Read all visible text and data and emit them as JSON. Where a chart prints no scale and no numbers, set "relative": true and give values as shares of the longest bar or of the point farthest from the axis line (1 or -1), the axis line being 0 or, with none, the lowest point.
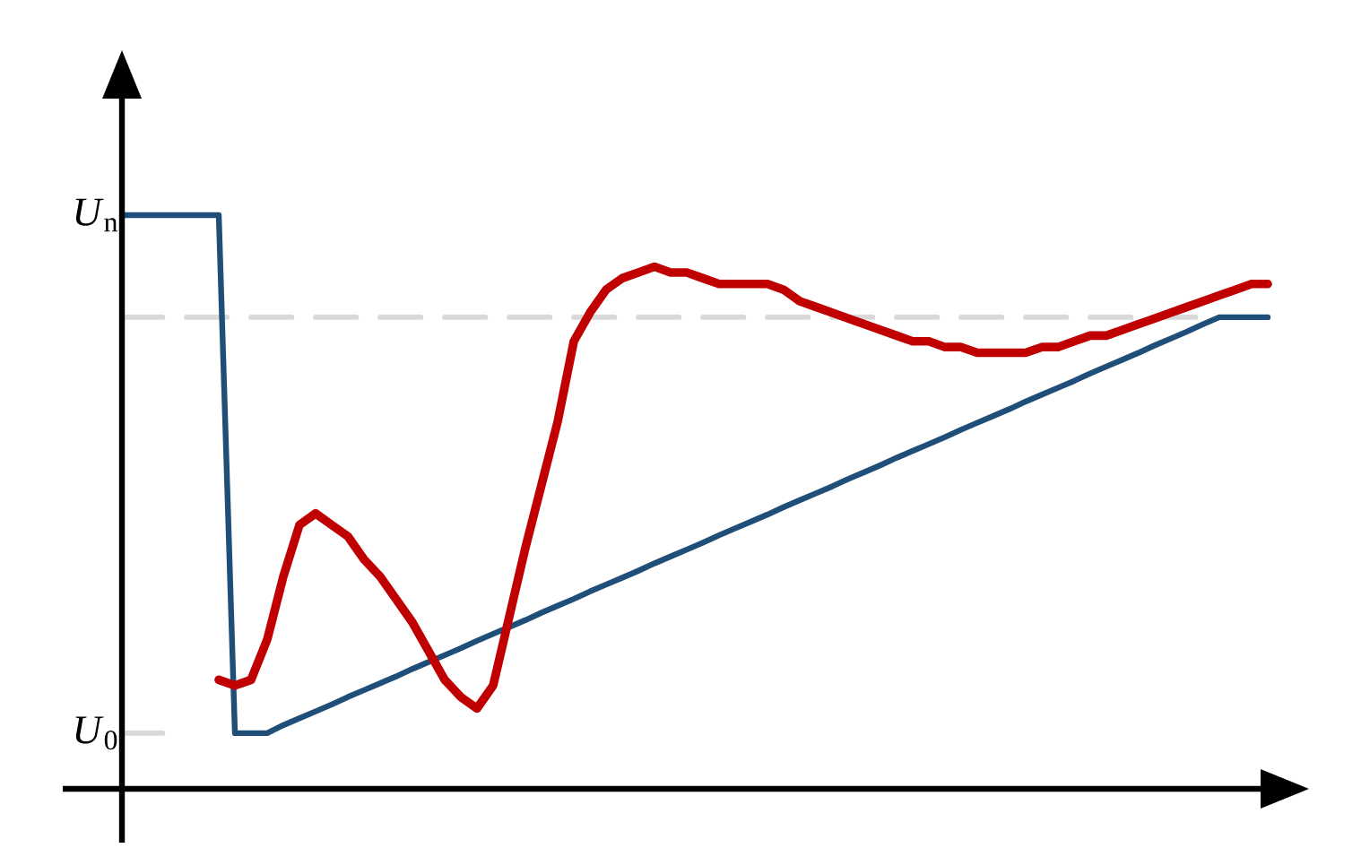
{
  "chart_data": {
    "type": "line",
    "relative": true,
    "marker": "none",
    "categories": [
      null,
      null,
      null,
      null,
      null,
      null,
      null,
      null,
      null,
      null,
      null,
      null,
      null,
      null,
      null,
      null,
      null,
      null,
      null,
      null,
      null,
      null,
      null,
      null,
      null,
      null,
      null,
      null,
      null,
      null,
      null,
      null,
      null,
      null,
      null,
      null,
      null,
      null,
      null,
      null,
      null,
      null,
      null,
      null,
      null,
      null,
      null,
      null,
      null,
      null,
      null,
      null,
      null,
      null,
      null,
      null,
      null,
      null,
      null,
      null,
      null,
      null,
      null,
      null,
      null,
      null,
      null,
      null,
      null,
      null,
      null,
      null
    ],
    "series": [
      {
        "color": "#1f4e79",
        "values": [
          1.0,
          1.0,
          1.0,
          1.0,
          1.0,
          1.0,
          1.0,
          0.097,
          0.097,
          0.097,
          0.111,
          0.123,
          0.135,
          0.147,
          0.16,
          0.172,
          0.184,
          0.196,
          0.209,
          0.221,
          0.233,
          0.245,
          0.258,
          0.27,
          0.282,
          0.294,
          0.307,
          0.319,
          0.331,
          0.344,
          0.356,
          0.368,
          0.38,
          0.393,
          0.405,
          0.417,
          0.429,
          0.442,
          0.454,
          0.466,
          0.478,
          0.491,
          0.503,
          0.515,
          0.527,
          0.54,
          0.552,
          0.564,
          0.577,
          0.589,
          0.601,
          0.613,
          0.626,
          0.638,
          0.65,
          0.662,
          0.675,
          0.687,
          0.699,
          0.711,
          0.724,
          0.736,
          0.748,
          0.76,
          0.773,
          0.785,
          0.797,
          0.81,
          0.822,
          0.822,
          0.822,
          0.822
        ]
      },
      {
        "color": "#c00000",
        "values": [
          null,
          null,
          null,
          null,
          null,
          null,
          0.19,
          0.18,
          0.19,
          0.26,
          0.37,
          0.46,
          0.48,
          0.46,
          0.44,
          0.4,
          0.37,
          0.33,
          0.29,
          0.24,
          0.19,
          0.16,
          0.14,
          0.18,
          0.3,
          0.42,
          0.53,
          0.64,
          0.78,
          0.83,
          0.87,
          0.89,
          0.9,
          0.91,
          0.9,
          0.9,
          0.89,
          0.88,
          0.88,
          0.88,
          0.88,
          0.87,
          0.85,
          0.84,
          0.83,
          0.82,
          0.81,
          0.8,
          0.79,
          0.78,
          0.78,
          0.77,
          0.77,
          0.76,
          0.76,
          0.76,
          0.76,
          0.77,
          0.77,
          0.78,
          0.79,
          0.79,
          0.8,
          0.81,
          0.82,
          0.83,
          0.84,
          0.85,
          0.86,
          0.87,
          0.88,
          0.88
        ]
      }
    ],
    "ref_lines": [
      {
        "axis": "y",
        "value": 0.097,
        "label": "*U*$_{0}$",
        "color": "#d9d9d9",
        "line_style": "dashed"
      },
      {
        "axis": "y",
        "value": 0.822,
        "color": "#d9d9d9",
        "line_style": "dashed"
      }
    ],
    "annotations": [
      "*U*$_{n}$"
    ]
  }
}
